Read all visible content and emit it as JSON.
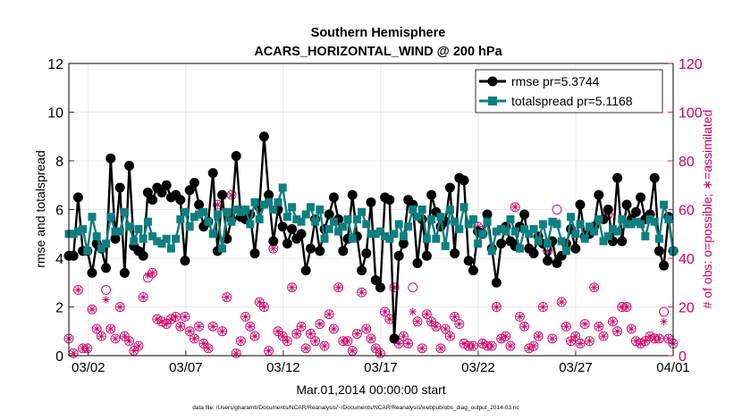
{
  "chart_data": {
    "type": "line",
    "title": "Southern Hemisphere",
    "subtitle": "ACARS_HORIZONTAL_WIND @ 200 hPa",
    "xlabel": "Mar.01,2014 00:00:00 start",
    "ylabel": "rmse and totalspread",
    "y2label": "# of obs: o=possible; ∗=assimilated",
    "footnote": "data file: /Users/gharamti/Documents/NCAR/Reanalysis/~/Documents/NCAR/Reanalysis/webpub/obs_diag_output_2014-03.nc",
    "x_start_day": 1,
    "xlim": [
      1,
      32
    ],
    "ylim": [
      0,
      12
    ],
    "y2lim": [
      0,
      120
    ],
    "yticks": [
      0,
      2,
      4,
      6,
      8,
      10,
      12
    ],
    "y2ticks": [
      0,
      20,
      40,
      60,
      80,
      100,
      120
    ],
    "xticks": [
      {
        "day": 2,
        "label": "03/02"
      },
      {
        "day": 7,
        "label": "03/07"
      },
      {
        "day": 12,
        "label": "03/12"
      },
      {
        "day": 17,
        "label": "03/17"
      },
      {
        "day": 22,
        "label": "03/22"
      },
      {
        "day": 27,
        "label": "03/27"
      },
      {
        "day": 32,
        "label": "04/01"
      }
    ],
    "grid": true,
    "legend_position": "top-right",
    "colors": {
      "rmse": "#000000",
      "spread": "#0f7f7f",
      "obs": "#cc0066",
      "axis": "#000000"
    },
    "series": [
      {
        "name": "rmse pr=5.3744",
        "role": "rmse",
        "axis": "left",
        "values": [
          4.1,
          4.1,
          6.5,
          4.3,
          4.3,
          3.4,
          4.6,
          4.4,
          3.6,
          8.1,
          4.8,
          6.9,
          3.4,
          7.8,
          4.5,
          4.3,
          4.1,
          6.7,
          6.4,
          6.9,
          6.7,
          7.0,
          6.5,
          6.6,
          6.4,
          3.9,
          6.8,
          7.1,
          6.2,
          5.3,
          5.5,
          7.5,
          4.3,
          6.6,
          4.8,
          5.6,
          8.2,
          5.7,
          5.6,
          5.8,
          4.2,
          6.1,
          9.0,
          6.6,
          4.7,
          6.0,
          5.3,
          4.6,
          5.2,
          4.8,
          5.0,
          3.5,
          4.4,
          5.6,
          4.3,
          5.2,
          5.8,
          6.5,
          5.6,
          4.3,
          4.8,
          6.6,
          4.9,
          3.5,
          4.2,
          6.3,
          3.1,
          2.8,
          6.5,
          6.4,
          0.7,
          4.1,
          4.6,
          6.4,
          6.2,
          3.8,
          5.6,
          4.1,
          6.6,
          5.9,
          5.3,
          5.5,
          6.9,
          4.2,
          7.3,
          7.2,
          3.9,
          3.5,
          5.1,
          5.0,
          5.8,
          4.4,
          3.0,
          4.6,
          5.3,
          4.7,
          4.5,
          5.3,
          5.8,
          4.4,
          4.2,
          4.9,
          4.6,
          3.9,
          4.7,
          3.8,
          4.1,
          4.6,
          5.2,
          4.4,
          6.2,
          4.9,
          5.0,
          5.3,
          6.6,
          5.6,
          6.0,
          4.7,
          7.3,
          4.7,
          6.2,
          5.6,
          5.9,
          6.5,
          5.6,
          5.8,
          7.3,
          4.3,
          3.7,
          5.7,
          4.3
        ]
      },
      {
        "name": "totalspread pr=5.1168",
        "role": "spread",
        "axis": "left",
        "values": [
          5.0,
          5.0,
          5.1,
          5.2,
          4.3,
          5.7,
          4.9,
          4.4,
          4.6,
          5.7,
          5.1,
          5.1,
          5.9,
          5.3,
          4.7,
          5.2,
          4.8,
          5.5,
          4.9,
          4.7,
          4.6,
          4.8,
          4.4,
          4.8,
          5.6,
          5.9,
          5.3,
          5.7,
          5.8,
          5.9,
          5.5,
          5.0,
          5.8,
          4.4,
          5.9,
          5.5,
          6.0,
          5.9,
          6.0,
          5.4,
          6.3,
          5.6,
          6.2,
          6.3,
          6.0,
          6.3,
          6.9,
          5.7,
          6.1,
          5.6,
          5.5,
          5.8,
          6.1,
          5.5,
          6.0,
          4.8,
          5.2,
          5.5,
          5.1,
          5.3,
          5.6,
          4.8,
          5.6,
          5.9,
          5.4,
          5.0,
          5.0,
          5.1,
          4.9,
          4.8,
          5.0,
          5.4,
          4.9,
          5.3,
          6.0,
          5.7,
          6.0,
          4.8,
          5.6,
          4.8,
          5.7,
          4.5,
          6.0,
          5.5,
          5.2,
          6.1,
          5.4,
          5.6,
          4.6,
          5.0,
          5.5,
          4.3,
          5.1,
          5.2,
          5.1,
          5.6,
          5.1,
          4.4,
          5.2,
          5.0,
          5.2,
          4.7,
          5.4,
          4.6,
          5.5,
          5.4,
          4.7,
          4.3,
          5.7,
          5.0,
          5.4,
          4.8,
          5.3,
          5.1,
          5.6,
          4.7,
          4.9,
          5.2,
          5.1,
          5.6,
          5.4,
          5.4,
          5.5,
          5.4,
          4.9,
          5.6,
          5.5,
          4.8,
          6.2,
          5.6,
          4.3
        ]
      },
      {
        "name": "possible",
        "role": "obs_possible",
        "axis": "right",
        "values": [
          7,
          1,
          27,
          3,
          3,
          19,
          11,
          8,
          27,
          11,
          7,
          20,
          8,
          6,
          2,
          4,
          24,
          32,
          34,
          15,
          14,
          13,
          15,
          16,
          12,
          16,
          10,
          7,
          12,
          5,
          3,
          12,
          62,
          10,
          24,
          66,
          1,
          6,
          16,
          12,
          8,
          22,
          20,
          2,
          44,
          10,
          8,
          6,
          28,
          9,
          12,
          3,
          9,
          6,
          13,
          4,
          17,
          11,
          28,
          6,
          6,
          2,
          9,
          26,
          11,
          7,
          3,
          1,
          18,
          15,
          28,
          5,
          8,
          5,
          28,
          14,
          3,
          17,
          14,
          12,
          3,
          11,
          8,
          16,
          13,
          5,
          4,
          4,
          53,
          5,
          4,
          4,
          20,
          7,
          8,
          4,
          61,
          16,
          12,
          3,
          4,
          8,
          20,
          43,
          7,
          60,
          22,
          12,
          6,
          8,
          5,
          13,
          6,
          28,
          12,
          8,
          58,
          14,
          10,
          20,
          20,
          11,
          6,
          5,
          6,
          8,
          7,
          7,
          18,
          7,
          5
        ]
      },
      {
        "name": "assimilated",
        "role": "obs_assimilated",
        "axis": "right",
        "values": [
          7,
          1,
          27,
          3,
          3,
          19,
          11,
          8,
          23,
          11,
          7,
          20,
          8,
          6,
          2,
          4,
          24,
          33,
          34,
          15,
          14,
          13,
          15,
          16,
          12,
          16,
          10,
          7,
          12,
          5,
          3,
          12,
          62,
          10,
          24,
          66,
          1,
          6,
          16,
          12,
          8,
          22,
          20,
          2,
          44,
          10,
          8,
          6,
          28,
          9,
          12,
          3,
          9,
          6,
          13,
          4,
          17,
          11,
          28,
          6,
          6,
          2,
          9,
          26,
          11,
          7,
          3,
          1,
          18,
          15,
          28,
          5,
          8,
          5,
          18,
          14,
          3,
          17,
          14,
          12,
          3,
          11,
          8,
          16,
          13,
          5,
          4,
          4,
          53,
          5,
          4,
          4,
          20,
          7,
          8,
          4,
          61,
          16,
          12,
          3,
          4,
          8,
          20,
          43,
          7,
          55,
          22,
          12,
          6,
          8,
          5,
          13,
          6,
          28,
          12,
          8,
          58,
          14,
          10,
          20,
          20,
          11,
          6,
          5,
          6,
          8,
          7,
          7,
          14,
          7,
          5
        ]
      }
    ]
  }
}
